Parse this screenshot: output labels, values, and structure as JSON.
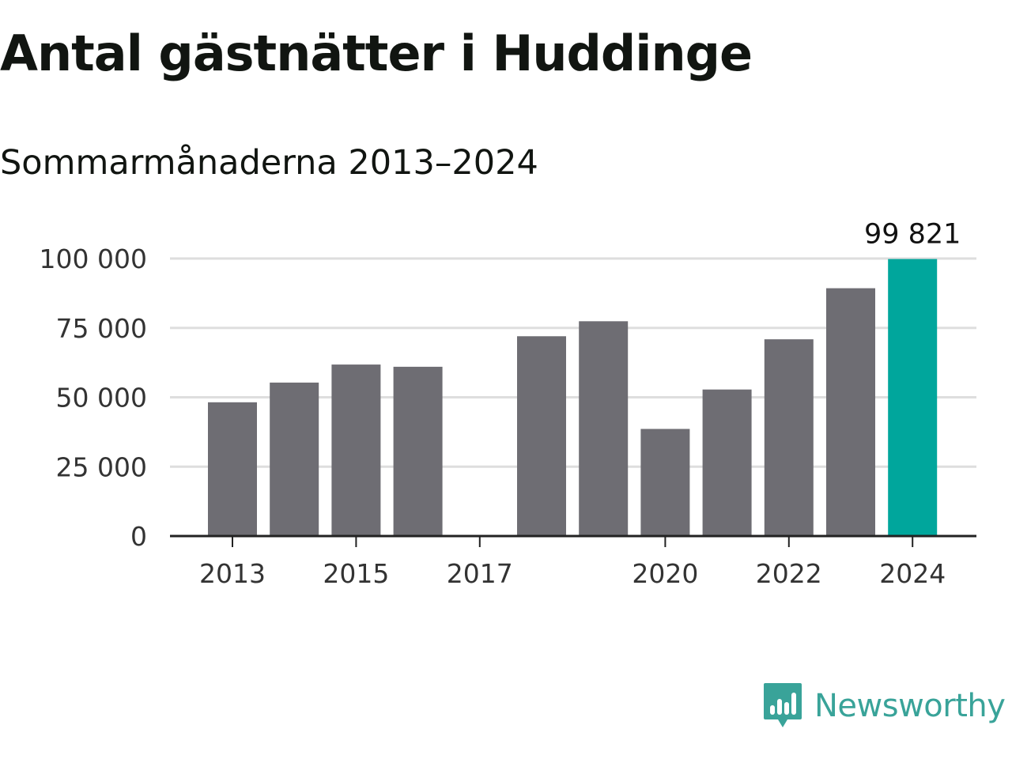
{
  "colors": {
    "bar": "#6e6d73",
    "highlight": "#00a69c",
    "grid": "#dedede",
    "axis": "#222222",
    "brand": "#39a399"
  },
  "logo": {
    "text": "Newsworthy",
    "icon": "bar-chart-speech-bubble-icon"
  },
  "chart_data": {
    "type": "bar",
    "title": "Antal gästnätter i Huddinge",
    "subtitle": "Sommarmånaderna 2013–2024",
    "xlabel": "",
    "ylabel": "",
    "categories": [
      "2013",
      "2014",
      "2015",
      "2016",
      "2017",
      "2018",
      "2019",
      "2020",
      "2021",
      "2022",
      "2023",
      "2024"
    ],
    "values": [
      48200,
      55300,
      61800,
      61000,
      null,
      72000,
      77400,
      38600,
      52800,
      70900,
      89300,
      99821
    ],
    "highlight_index": 11,
    "data_labels": [
      {
        "category": "2024",
        "text": "99 821"
      }
    ],
    "x_tick_labels": [
      "2013",
      "2015",
      "2017",
      "2020",
      "2022",
      "2024"
    ],
    "y_ticks": [
      0,
      25000,
      50000,
      75000,
      100000
    ],
    "y_tick_labels": [
      "0",
      "25 000",
      "50 000",
      "75 000",
      "100 000"
    ],
    "ylim": [
      0,
      100000
    ],
    "grid": true,
    "legend": false
  }
}
